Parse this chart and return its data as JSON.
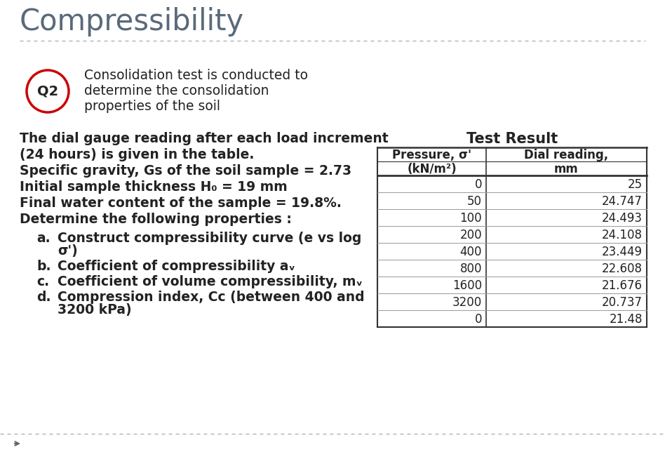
{
  "title": "Compressibility",
  "title_color": "#5a6a7a",
  "title_fontsize": 30,
  "background_color": "#ffffff",
  "q2_label": "Q2",
  "q2_circle_color": "#cc0000",
  "question_text_lines": [
    "Consolidation test is conducted to",
    "determine the consolidation",
    "properties of the soil"
  ],
  "body_lines": [
    "The dial gauge reading after each load increment",
    "(24 hours) is given in the table.",
    "Specific gravity, Gs of the soil sample = 2.73",
    "Initial sample thickness H₀ = 19 mm",
    "Final water content of the sample = 19.8%.",
    "Determine the following properties :"
  ],
  "list_items": [
    {
      "letter": "a.",
      "lines": [
        "Construct compressibility curve (e vs log",
        "σ')"
      ]
    },
    {
      "letter": "b.",
      "lines": [
        "Coefficient of compressibility aᵥ"
      ]
    },
    {
      "letter": "c.",
      "lines": [
        "Coefficient of volume compressibility, mᵥ"
      ]
    },
    {
      "letter": "d.",
      "lines": [
        "Compression index, Cᴄ (between 400 and",
        "3200 kPa)"
      ]
    }
  ],
  "table_title": "Test Result",
  "table_col1_header_line1": "Pressure, σ'",
  "table_col1_header_line2": "(kN/m²)",
  "table_col2_header_line1": "Dial reading,",
  "table_col2_header_line2": "mm",
  "table_data": [
    [
      0,
      "25"
    ],
    [
      50,
      "24.747"
    ],
    [
      100,
      "24.493"
    ],
    [
      200,
      "24.108"
    ],
    [
      400,
      "23.449"
    ],
    [
      800,
      "22.608"
    ],
    [
      1600,
      "21.676"
    ],
    [
      3200,
      "20.737"
    ],
    [
      0,
      "21.48"
    ]
  ],
  "separator_color": "#aaaaaa",
  "table_border_color": "#333333",
  "text_color": "#222222",
  "body_fontsize": 13.5,
  "table_fontsize": 12,
  "table_header_fontsize": 12,
  "table_title_fontsize": 15
}
